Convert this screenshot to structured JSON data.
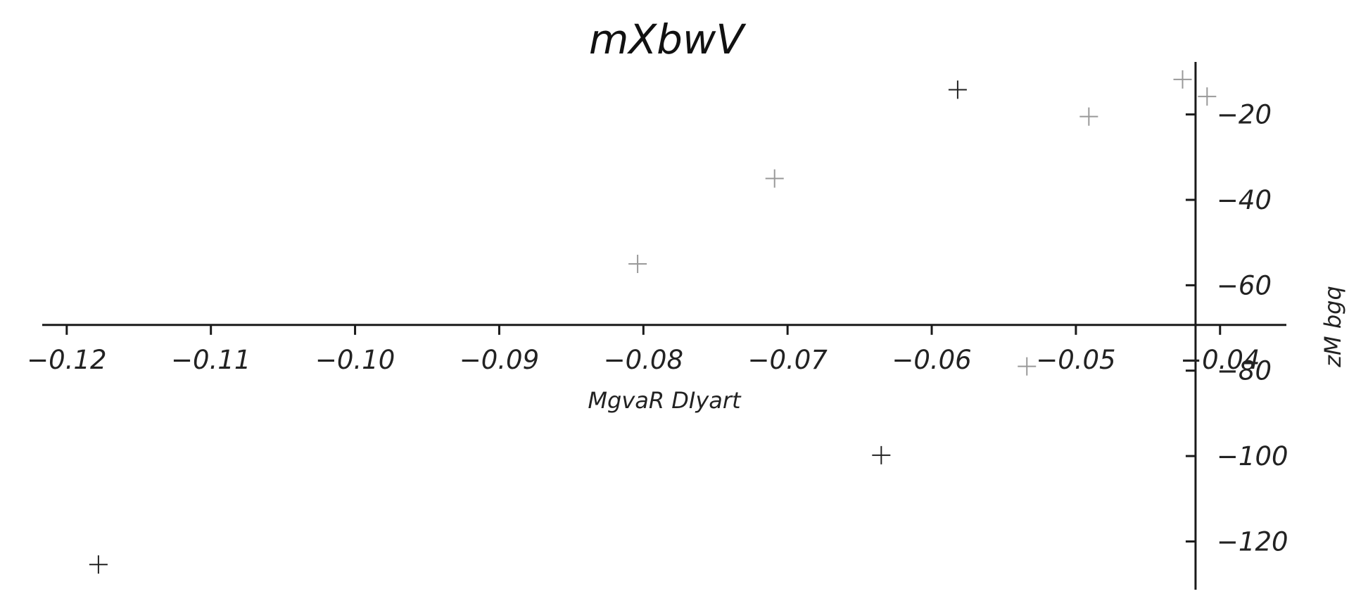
{
  "chart_data": {
    "type": "scatter",
    "title": "mXbwV",
    "xlabel": "MgvaR DIyart",
    "ylabel": "zM bgq",
    "xlim": [
      -0.1217,
      -0.0354
    ],
    "ylim": [
      -131.3,
      -7.7
    ],
    "xticks": [
      -0.12,
      -0.11,
      -0.1,
      -0.09,
      -0.08,
      -0.07,
      -0.06,
      -0.05,
      -0.04
    ],
    "xtick_labels": [
      "−0.12",
      "−0.11",
      "−0.10",
      "−0.09",
      "−0.08",
      "−0.07",
      "−0.06",
      "−0.05",
      "−0.04"
    ],
    "yticks": [
      -20,
      -40,
      -60,
      -80,
      -100,
      -120
    ],
    "ytick_labels": [
      "−20",
      "−40",
      "−60",
      "−80",
      "−100",
      "−120"
    ],
    "x_axis_at_y": -69.3,
    "y_axis_at_x": -0.0417,
    "grid": false,
    "marker": "plus",
    "series": [
      {
        "color": "#999999",
        "points": [
          {
            "x": -0.0426,
            "y": -11.8
          },
          {
            "x": -0.0409,
            "y": -15.8
          },
          {
            "x": -0.0491,
            "y": -20.5
          },
          {
            "x": -0.0709,
            "y": -35.0
          },
          {
            "x": -0.0804,
            "y": -55.0
          },
          {
            "x": -0.0534,
            "y": -79.0
          }
        ]
      },
      {
        "color": "#222222",
        "points": [
          {
            "x": -0.0582,
            "y": -14.2
          },
          {
            "x": -0.0635,
            "y": -99.8
          },
          {
            "x": -0.1178,
            "y": -125.4
          }
        ]
      }
    ]
  }
}
